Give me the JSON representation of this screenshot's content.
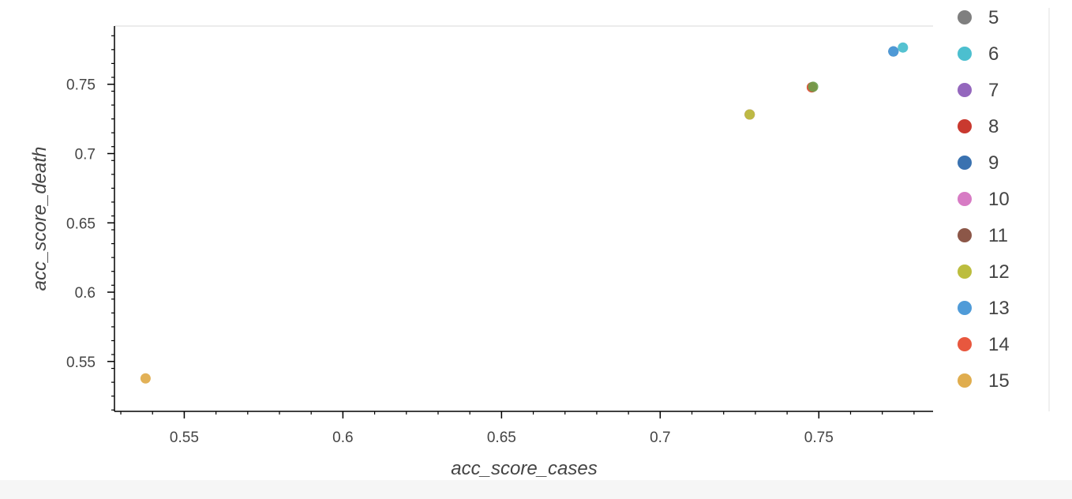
{
  "chart_data": {
    "type": "scatter",
    "title": "",
    "xlabel": "acc_score_cases",
    "ylabel": "acc_score_death",
    "xlim": [
      0.528,
      0.786
    ],
    "ylim": [
      0.514,
      0.792
    ],
    "x_ticks": [
      "0.55",
      "0.6",
      "0.65",
      "0.7",
      "0.75"
    ],
    "y_ticks": [
      "0.55",
      "0.6",
      "0.65",
      "0.7",
      "0.75"
    ],
    "grid": false,
    "legend_position": "right",
    "series": [
      {
        "name": "5",
        "color": "#7f7f7f",
        "points": [
          [
            0.7735,
            0.7737
          ]
        ]
      },
      {
        "name": "6",
        "color": "#4cbfcf",
        "points": [
          [
            0.7765,
            0.7765
          ]
        ]
      },
      {
        "name": "7",
        "color": "#9467bd",
        "points": [
          [
            0.7282,
            0.7282
          ]
        ]
      },
      {
        "name": "8",
        "color": "#c9392f",
        "points": [
          [
            0.7478,
            0.7478
          ]
        ]
      },
      {
        "name": "9",
        "color": "#3a72b0",
        "points": [
          [
            0.7735,
            0.7737
          ]
        ]
      },
      {
        "name": "10",
        "color": "#d77bc4",
        "points": [
          [
            0.7282,
            0.7282
          ]
        ]
      },
      {
        "name": "11",
        "color": "#8c5748",
        "points": [
          [
            0.7478,
            0.7478
          ]
        ]
      },
      {
        "name": "12",
        "color": "#bcbd3e",
        "points": [
          [
            0.7282,
            0.7282
          ]
        ]
      },
      {
        "name": "13",
        "color": "#4f9bd8",
        "points": [
          [
            0.7735,
            0.7737
          ]
        ]
      },
      {
        "name": "14",
        "color": "#e8573e",
        "points": [
          [
            0.7478,
            0.7478
          ]
        ]
      },
      {
        "name": "15",
        "color": "#e0ad4e",
        "points": [
          [
            0.5378,
            0.5378
          ]
        ]
      }
    ],
    "extra_points": [
      {
        "color": "#6aa04a",
        "x": 0.7482,
        "y": 0.7482
      }
    ]
  }
}
